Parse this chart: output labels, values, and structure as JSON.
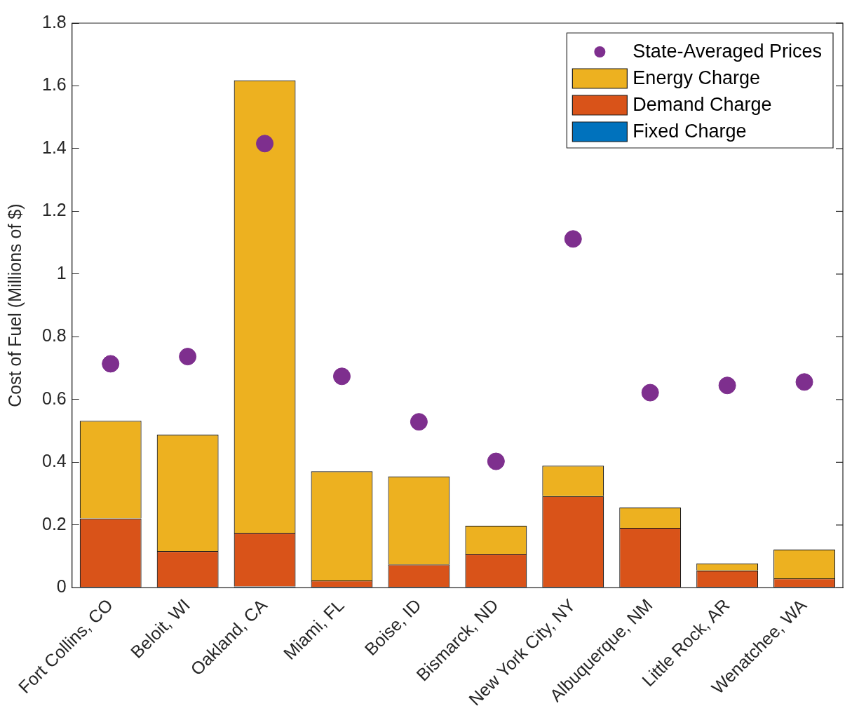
{
  "chart_data": {
    "type": "bar",
    "ylabel": "Cost of Fuel (Millions of $)",
    "categories": [
      "Fort Collins, CO",
      "Beloit, WI",
      "Oakland, CA",
      "Miami, FL",
      "Boise, ID",
      "Bismarck, ND",
      "New York City, NY",
      "Albuquerque, NM",
      "Little Rock, AR",
      "Wenatchee, WA"
    ],
    "stacked": true,
    "ylim": [
      0,
      1.8
    ],
    "yticks": [
      0,
      0.2,
      0.4,
      0.6,
      0.8,
      1,
      1.2,
      1.4,
      1.6,
      1.8
    ],
    "grid": false,
    "legend": "top right",
    "series": [
      {
        "name": "Fixed Charge",
        "color": "#0072bd",
        "values": [
          0.003,
          0.003,
          0.004,
          0.003,
          0.003,
          0.003,
          0.003,
          0.003,
          0.003,
          0.003
        ]
      },
      {
        "name": "Demand Charge",
        "color": "#d95319",
        "values": [
          0.218,
          0.114,
          0.171,
          0.02,
          0.071,
          0.105,
          0.289,
          0.188,
          0.052,
          0.027
        ]
      },
      {
        "name": "Energy Charge",
        "color": "#edb120",
        "values": [
          0.311,
          0.371,
          1.443,
          0.348,
          0.281,
          0.09,
          0.097,
          0.065,
          0.023,
          0.092
        ]
      },
      {
        "name": "State-Averaged Prices",
        "type": "scatter",
        "marker": "circle",
        "color": "#7e2f8e",
        "x": [
          "Fort Collins, CO",
          "Beloit, WI",
          "Oakland, CA",
          "Miami, FL",
          "Boise, ID",
          "Bismarck, ND",
          "New York City, NY",
          "Albuquerque, NM",
          "Little Rock, AR",
          "Wenatchee, WA"
        ],
        "values": [
          0.714,
          0.737,
          1.416,
          0.674,
          0.529,
          0.403,
          1.112,
          0.622,
          0.645,
          0.656
        ]
      }
    ]
  }
}
